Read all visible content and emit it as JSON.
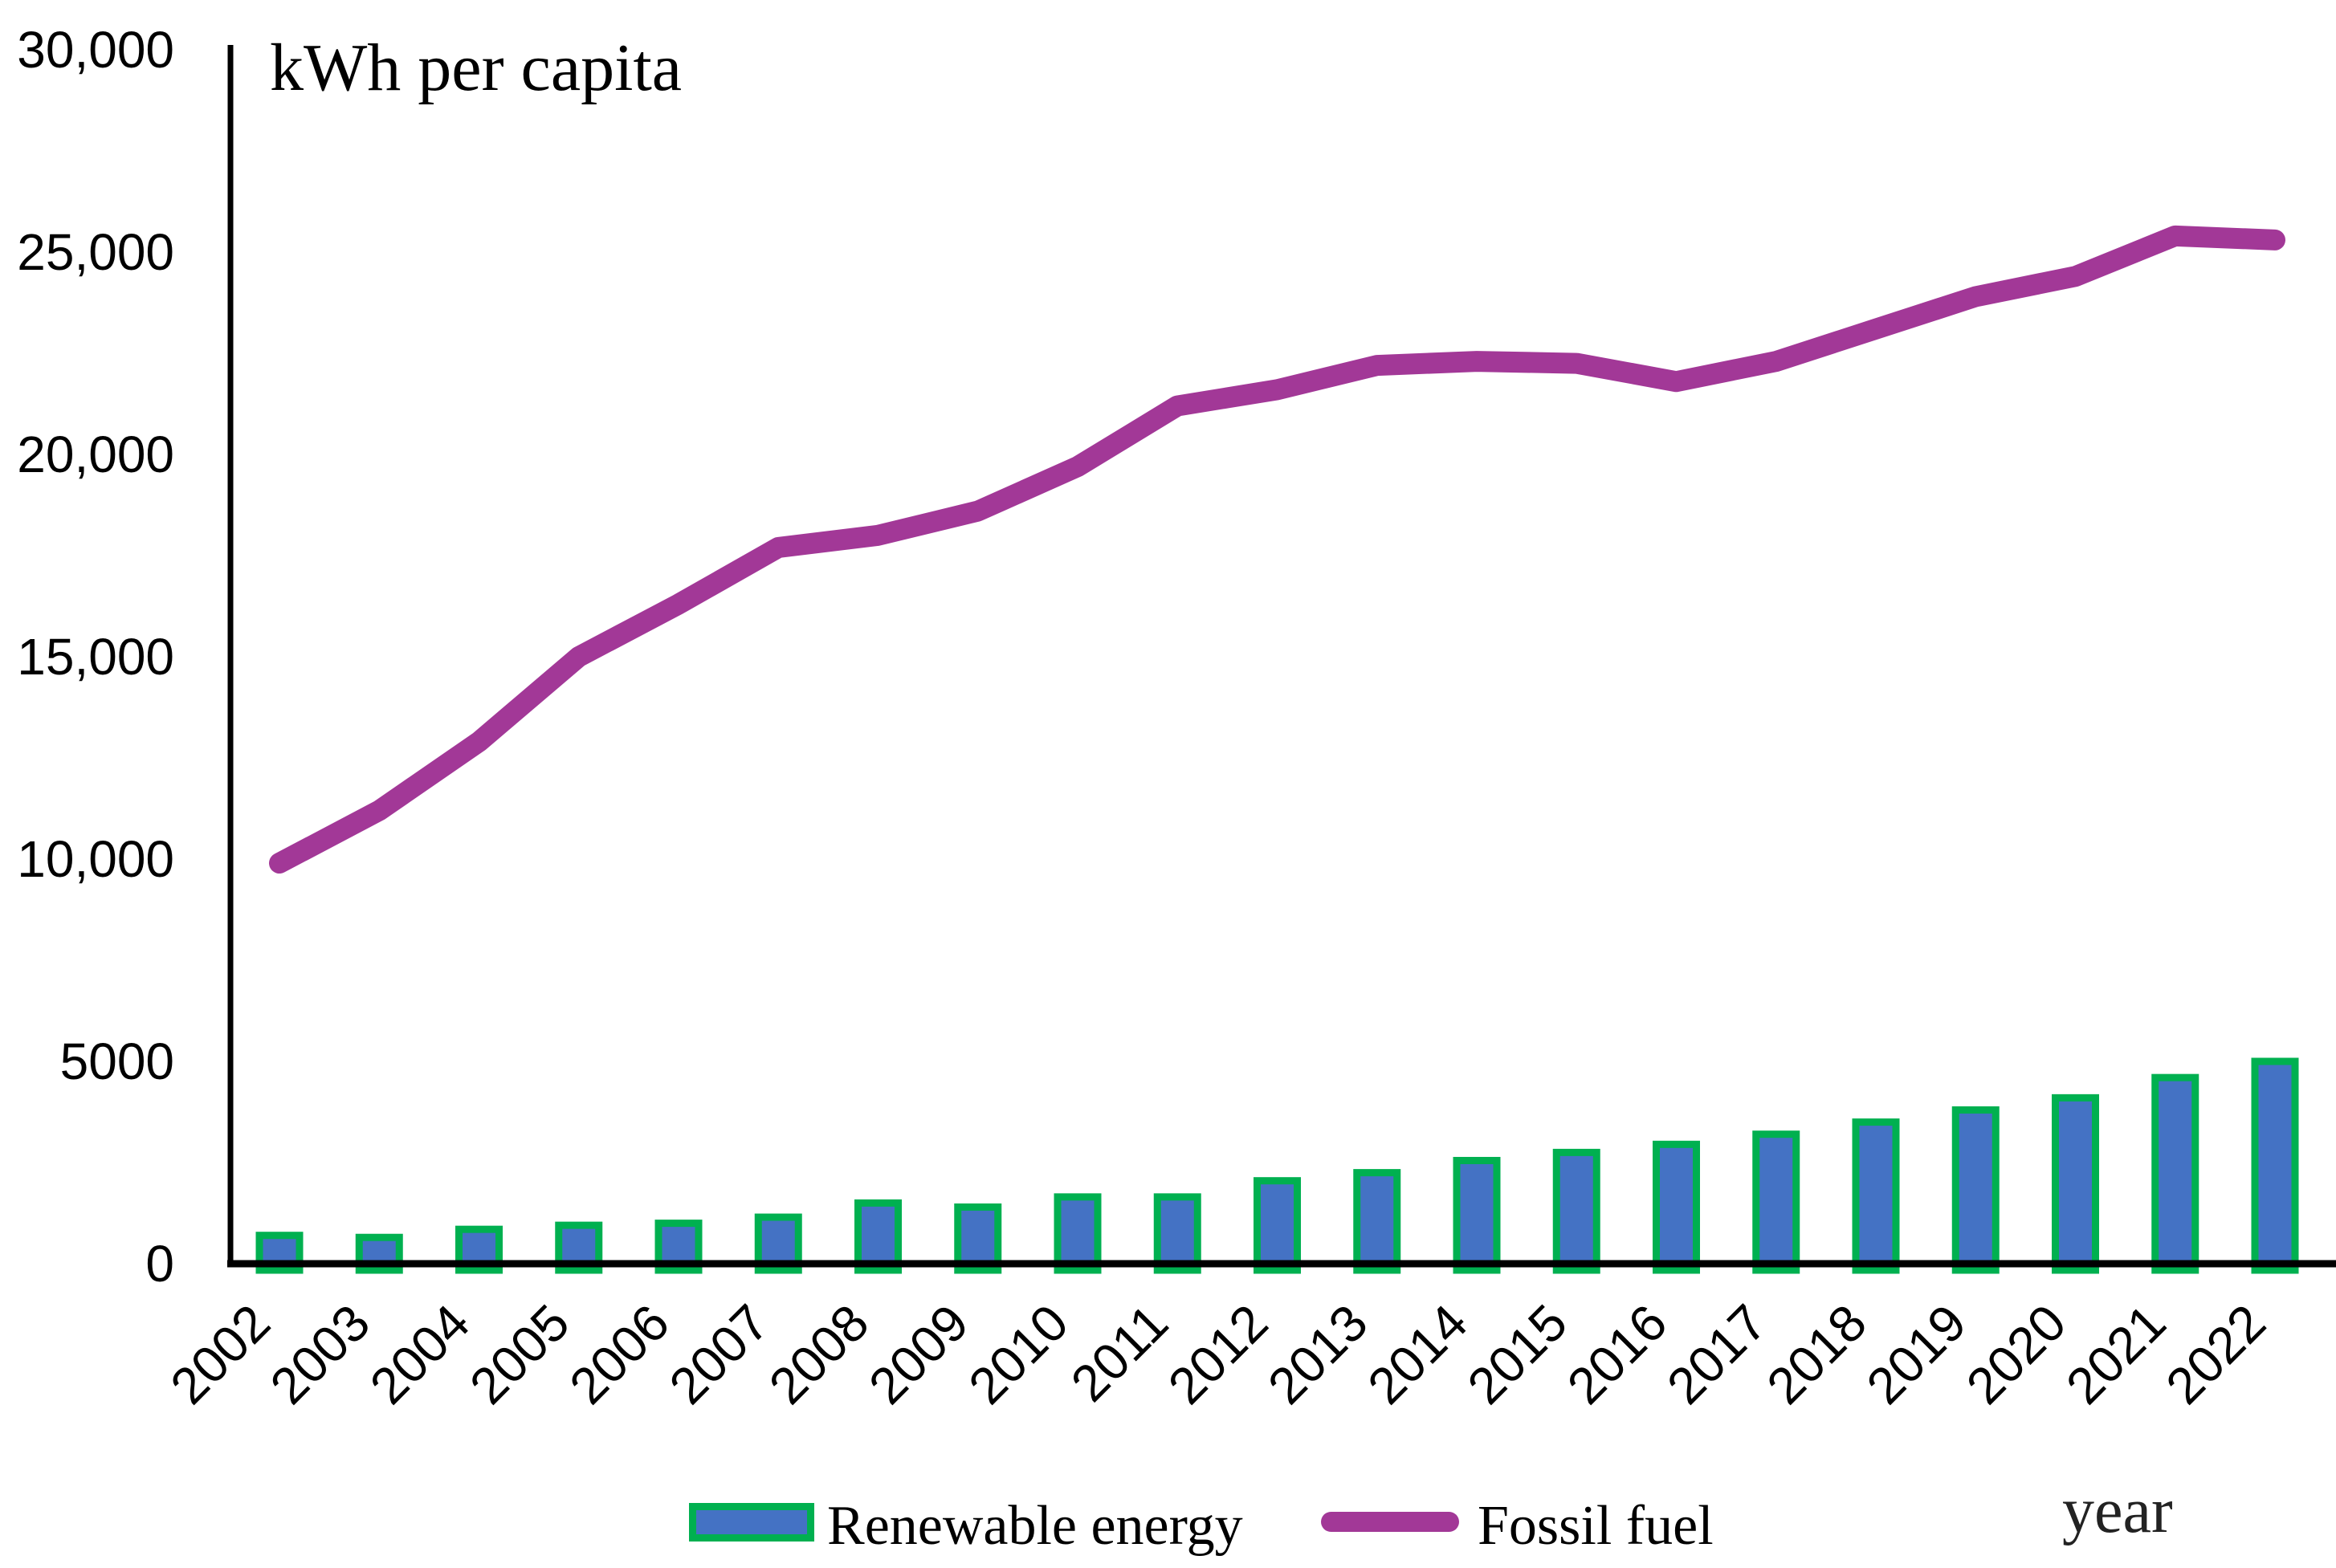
{
  "title": "kWh per capita",
  "x_axis_label": "year",
  "legend": {
    "renewable_label": "Renewable energy",
    "fossil_label": "Fossil fuel"
  },
  "colors": {
    "bar_fill": "#4472C4",
    "bar_border": "#00B050",
    "line": "#A23897",
    "axis": "#000000",
    "text": "#000000"
  },
  "chart_data": {
    "type": "bar+line",
    "categories": [
      "2002",
      "2003",
      "2004",
      "2005",
      "2006",
      "2007",
      "2008",
      "2009",
      "2010",
      "2011",
      "2012",
      "2013",
      "2014",
      "2015",
      "2016",
      "2017",
      "2018",
      "2019",
      "2020",
      "2021",
      "2022"
    ],
    "series": [
      {
        "name": "Renewable energy",
        "type": "bar",
        "color": "#4472C4",
        "border_color": "#00B050",
        "values": [
          700,
          650,
          850,
          950,
          1000,
          1150,
          1500,
          1400,
          1650,
          1650,
          2050,
          2250,
          2550,
          2750,
          2950,
          3200,
          3500,
          3800,
          4100,
          4600,
          5000
        ]
      },
      {
        "name": "Fossil fuel",
        "type": "line",
        "color": "#A23897",
        "values": [
          9900,
          11200,
          12900,
          15000,
          16300,
          17700,
          18000,
          18600,
          19700,
          21200,
          21600,
          22200,
          22300,
          22250,
          21800,
          22300,
          23100,
          23900,
          24400,
          25400,
          25300
        ]
      }
    ],
    "title": "kWh per capita",
    "xlabel": "year",
    "ylabel": "kWh per capita",
    "ylim": [
      0,
      30000
    ],
    "yticks": [
      {
        "value": 0,
        "label": "0"
      },
      {
        "value": 5000,
        "label": "5000"
      },
      {
        "value": 10000,
        "label": "10,000"
      },
      {
        "value": 15000,
        "label": "15,000"
      },
      {
        "value": 20000,
        "label": "20,000"
      },
      {
        "value": 25000,
        "label": "25,000"
      },
      {
        "value": 30000,
        "label": "30,000"
      }
    ],
    "grid": false,
    "legend_position": "bottom"
  }
}
